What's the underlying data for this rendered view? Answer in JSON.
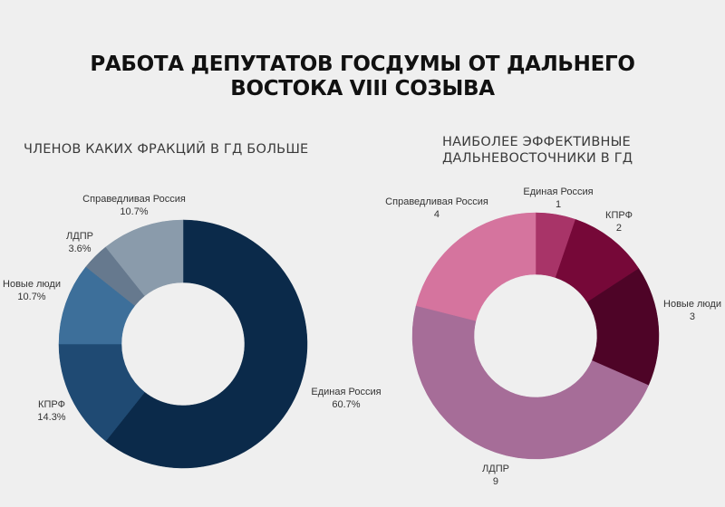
{
  "title": {
    "line1": "РАБОТА ДЕПУТАТОВ ГОСДУМЫ ОТ ДАЛЬНЕГО",
    "line2": "ВОСТОКА VIII СОЗЫВА"
  },
  "left_chart": {
    "subtitle": "ЧЛЕНОВ КАКИХ ФРАКЦИЙ В ГД БОЛЬШЕ"
  },
  "right_chart": {
    "subtitle_line1": "НАИБОЛЕЕ ЭФФЕКТИВНЫЕ",
    "subtitle_line2": "ДАЛЬНЕВОСТОЧНИКИ В ГД"
  },
  "chart_data": [
    {
      "type": "pie",
      "variant": "donut",
      "title": "ЧЛЕНОВ КАКИХ ФРАКЦИЙ В ГД БОЛЬШЕ",
      "start": "top, clockwise",
      "categories": [
        "Единая Россия",
        "КПРФ",
        "Новые люди",
        "ЛДПР",
        "Справедливая Россия"
      ],
      "values": [
        60.7,
        14.3,
        10.7,
        3.6,
        10.7
      ],
      "value_labels": [
        "60.7%",
        "14.3%",
        "10.7%",
        "3.6%",
        "10.7%"
      ],
      "unit": "%",
      "colors": [
        "#0b2a4a",
        "#1f4a73",
        "#3d6f9a",
        "#66798e",
        "#8a9bab"
      ],
      "legend": "none (direct labels)"
    },
    {
      "type": "pie",
      "variant": "donut",
      "title": "НАИБОЛЕЕ ЭФФЕКТИВНЫЕ ДАЛЬНЕВОСТОЧНИКИ В ГД",
      "start": "top, clockwise",
      "categories": [
        "Единая Россия",
        "КПРФ",
        "Новые люди",
        "ЛДПР",
        "Справедливая Россия"
      ],
      "values": [
        1,
        2,
        3,
        9,
        4
      ],
      "value_labels": [
        "1",
        "2",
        "3",
        "9",
        "4"
      ],
      "colors": [
        "#a83468",
        "#760838",
        "#4e0427",
        "#a66d98",
        "#d5749e"
      ],
      "legend": "none (direct labels)"
    }
  ]
}
